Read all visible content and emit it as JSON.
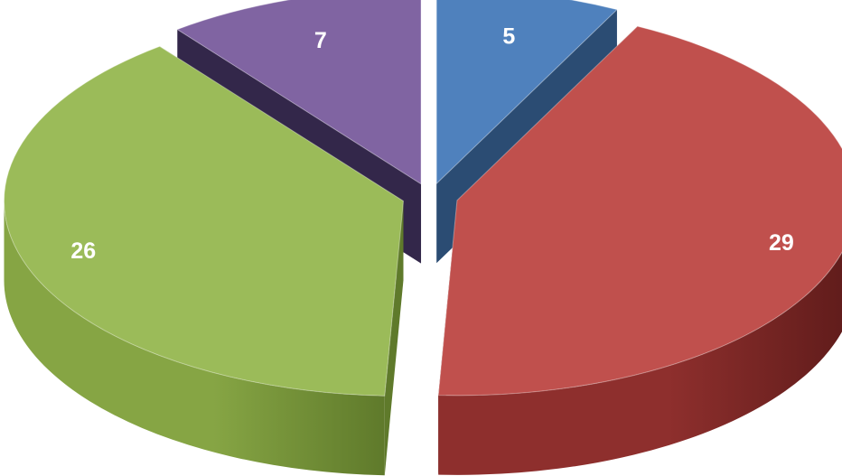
{
  "chart_data": {
    "type": "pie",
    "style": "3d-exploded",
    "legend": "none",
    "slices": [
      {
        "value": 5,
        "label": "5",
        "color": "#4f81bd",
        "side": "#3a6597",
        "dark": "#2b4c73"
      },
      {
        "value": 29,
        "label": "29",
        "color": "#c0504d",
        "side": "#8e2f2d",
        "dark": "#5e1b1a"
      },
      {
        "value": 26,
        "label": "26",
        "color": "#9bbb59",
        "side": "#86a544",
        "dark": "#5f7a2b"
      },
      {
        "value": 7,
        "label": "7",
        "color": "#8064a2",
        "side": "#5a4578",
        "dark": "#33274a"
      }
    ]
  }
}
